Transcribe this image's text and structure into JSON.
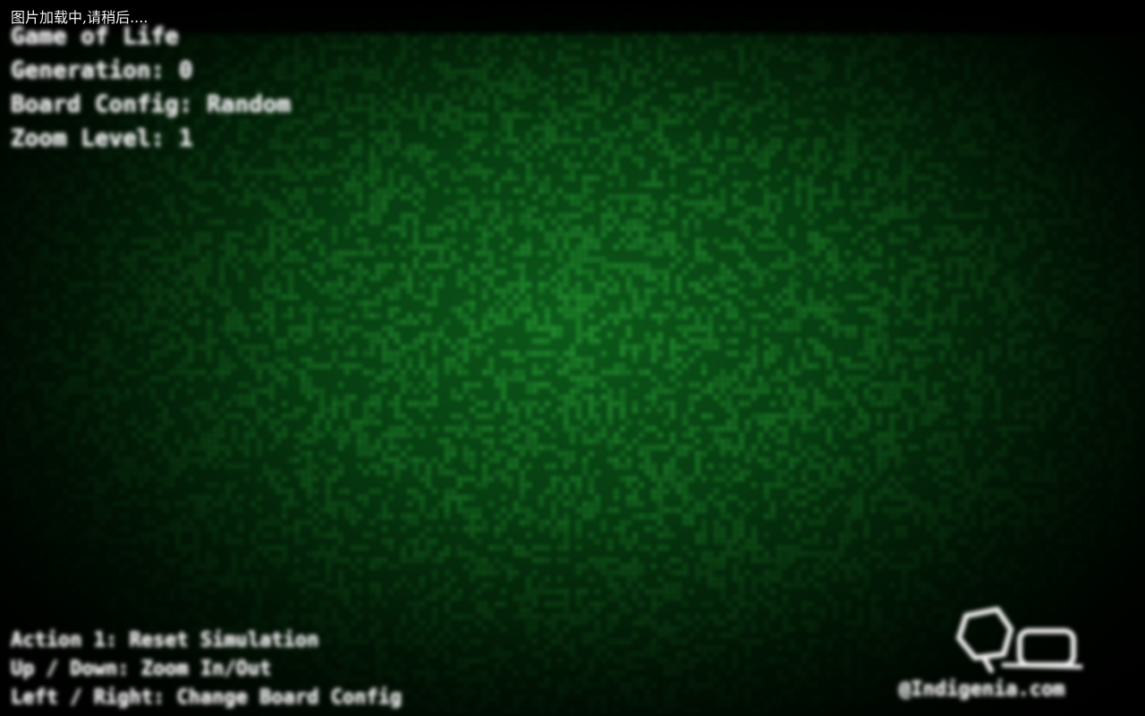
{
  "loading": {
    "text": "图片加载中,请稍后...."
  },
  "hud": {
    "title": "Game of Life",
    "generation": "Generation: 0",
    "board_config": "Board Config: Random",
    "zoom_level": "Zoom Level: 1"
  },
  "controls": {
    "line1": "Action 1: Reset Simulation",
    "line2": "Up / Down: Zoom In/Out",
    "line3": "Left / Right: Change Board Config"
  },
  "logo": {
    "icon": "logo-icon",
    "text": "@Indigenia.com"
  },
  "colors": {
    "background": "#000000",
    "cell": "#2fa83a",
    "text": "#e8e8e8"
  }
}
